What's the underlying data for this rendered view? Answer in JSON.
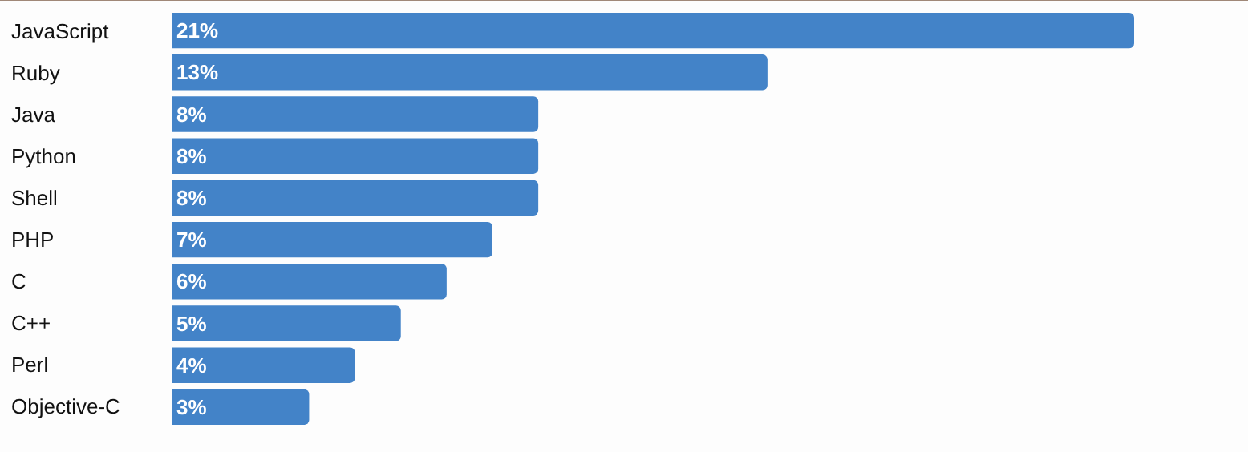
{
  "chart_data": {
    "type": "bar",
    "orientation": "horizontal",
    "categories": [
      "JavaScript",
      "Ruby",
      "Java",
      "Python",
      "Shell",
      "PHP",
      "C",
      "C++",
      "Perl",
      "Objective-C"
    ],
    "values": [
      21,
      13,
      8,
      8,
      8,
      7,
      6,
      5,
      4,
      3
    ],
    "value_labels": [
      "21%",
      "13%",
      "8%",
      "8%",
      "8%",
      "7%",
      "6%",
      "5%",
      "4%",
      "3%"
    ],
    "color": "#4383c8",
    "grid": false,
    "legend": false
  }
}
